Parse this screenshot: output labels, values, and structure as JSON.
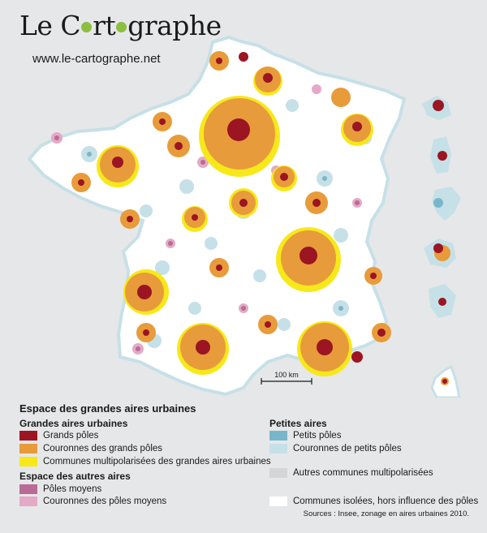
{
  "header": {
    "logo_part1": "Le C",
    "logo_part2": "rt",
    "logo_part3": "graphe",
    "url": "www.le-cartographe.net"
  },
  "scale": {
    "label": "100 km"
  },
  "legend": {
    "title": "Espace des grandes aires urbaines",
    "groups": [
      {
        "title": "Grandes aires urbaines",
        "items": [
          {
            "label": "Grands pôles",
            "color": "#9b1522"
          },
          {
            "label": "Couronnes des grands pôles",
            "color": "#e89b3a"
          },
          {
            "label": "Communes multipolarisées des grandes aires urbaines",
            "color": "#f7e81a"
          }
        ]
      },
      {
        "title": "Espace des autres aires",
        "items": [
          {
            "label": "Pôles moyens",
            "color": "#b96b95"
          },
          {
            "label": "Couronnes des pôles moyens",
            "color": "#e4a9c6"
          }
        ]
      },
      {
        "title": "Petites aires",
        "items": [
          {
            "label": "Petits pôles",
            "color": "#7ab6c9"
          },
          {
            "label": "Couronnes de petits pôles",
            "color": "#c6e0e7"
          }
        ]
      }
    ],
    "other_items": [
      {
        "label": "Autres communes multipolarisées",
        "color": "#d4d5d6"
      },
      {
        "label": "Communes isolées, hors influence des pôles",
        "color": "#ffffff"
      }
    ]
  },
  "sources": "Sources : Insee, zonage en aires urbaines 2010.",
  "colors": {
    "background": "#e6e7e9",
    "land": "#ffffff",
    "grand_pole": "#9b1522",
    "couronne_grand": "#e89b3a",
    "multipolarise": "#f7e81a",
    "pole_moyen": "#b96b95",
    "couronne_moyen": "#e4a9c6",
    "petit_pole": "#7ab6c9",
    "couronne_petit": "#c6e0e7",
    "logo_green": "#8cbf3f"
  }
}
